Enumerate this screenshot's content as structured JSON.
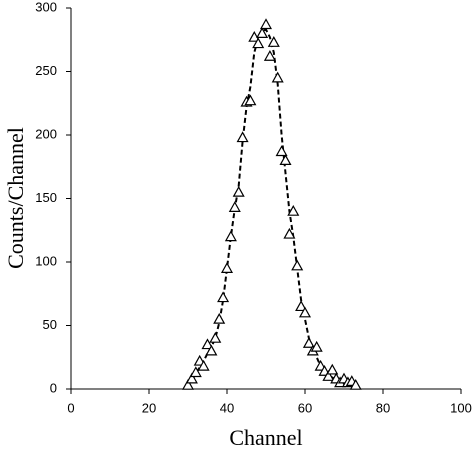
{
  "chart_data": {
    "type": "scatter",
    "x_label": "Channel",
    "y_label": "Counts/Channel",
    "xlim": [
      0,
      100
    ],
    "ylim": [
      0,
      300
    ],
    "xticks": [
      0,
      20,
      40,
      60,
      80,
      100
    ],
    "yticks": [
      0,
      50,
      100,
      150,
      200,
      250,
      300
    ],
    "series": [
      {
        "marker": "triangle",
        "color": "#000000",
        "x": [
          30,
          31,
          32,
          33,
          34,
          35,
          36,
          37,
          38,
          39,
          40,
          41,
          42,
          43,
          44,
          45,
          46,
          47,
          48,
          49,
          50,
          51,
          52,
          53,
          54,
          55,
          56,
          57,
          58,
          59,
          60,
          61,
          62,
          63,
          64,
          65,
          66,
          67,
          68,
          69,
          70,
          71,
          72,
          73
        ],
        "values": [
          3,
          8,
          13,
          22,
          18,
          35,
          30,
          40,
          55,
          72,
          95,
          120,
          143,
          155,
          198,
          226,
          227,
          277,
          272,
          280,
          287,
          262,
          273,
          245,
          187,
          180,
          122,
          140,
          97,
          65,
          60,
          36,
          30,
          33,
          18,
          14,
          10,
          15,
          8,
          5,
          8,
          5,
          6,
          3
        ]
      },
      {
        "line_style": "dashed",
        "color": "#000000",
        "x": [
          30,
          31,
          32,
          33,
          34,
          35,
          36,
          37,
          38,
          39,
          40,
          41,
          42,
          43,
          44,
          45,
          46,
          47,
          48,
          49,
          50,
          51,
          52,
          53,
          54,
          55,
          56,
          57,
          58,
          59,
          60,
          61,
          62,
          63,
          64,
          65,
          66,
          67,
          68,
          69,
          70,
          71,
          72,
          73
        ],
        "values": [
          3,
          7,
          12,
          17,
          22,
          28,
          33,
          40,
          52,
          70,
          95,
          120,
          142,
          160,
          195,
          222,
          238,
          265,
          276,
          282,
          283,
          277,
          265,
          240,
          200,
          170,
          140,
          120,
          95,
          70,
          55,
          40,
          32,
          25,
          18,
          14,
          11,
          9,
          7,
          5,
          5,
          4,
          3,
          2
        ]
      }
    ]
  }
}
